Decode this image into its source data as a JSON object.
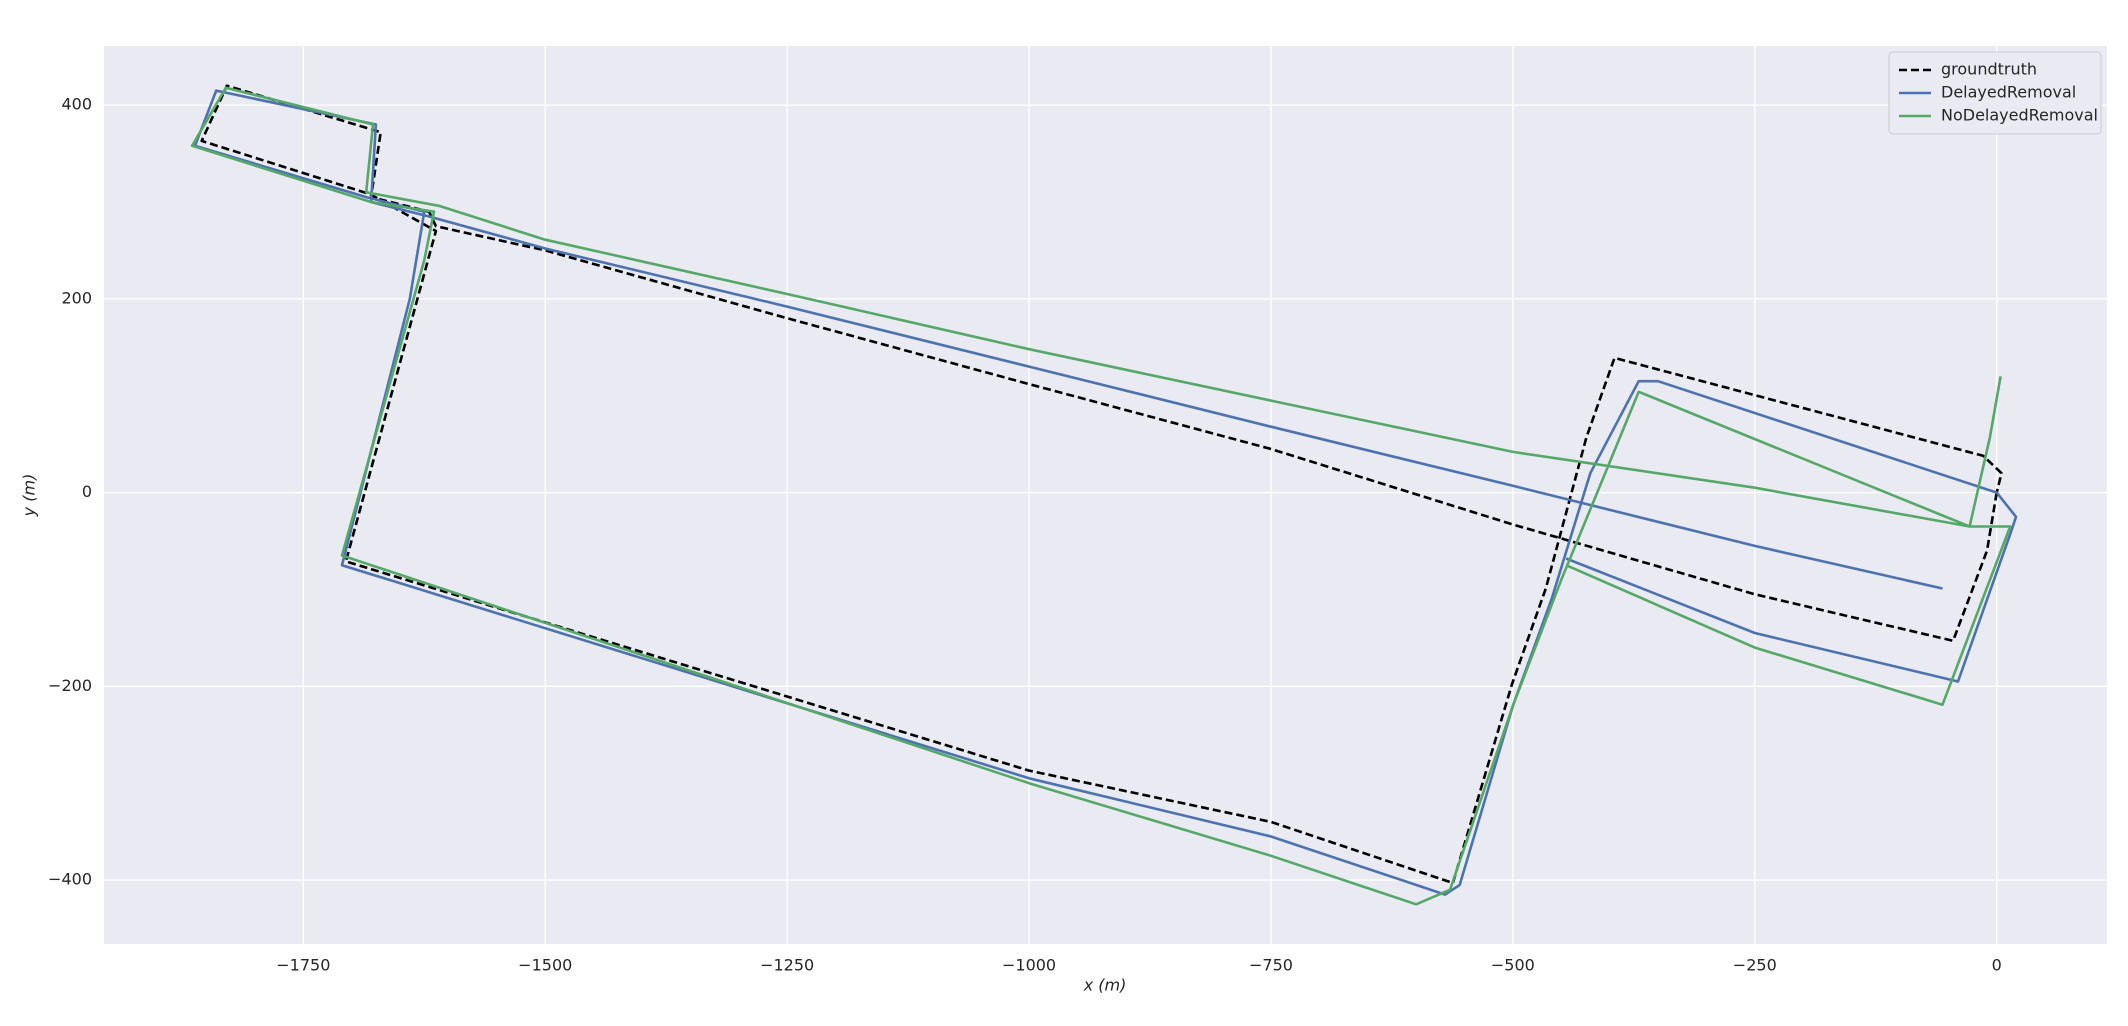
{
  "chart_data": {
    "type": "line",
    "xlabel": "x (m)",
    "ylabel": "y (m)",
    "xlim": [
      -1956,
      114
    ],
    "ylim": [
      -466,
      461
    ],
    "xticks": [
      {
        "value": -1750,
        "label": "−1750"
      },
      {
        "value": -1500,
        "label": "−1500"
      },
      {
        "value": -1250,
        "label": "−1250"
      },
      {
        "value": -1000,
        "label": "−1000"
      },
      {
        "value": -750,
        "label": "−750"
      },
      {
        "value": -500,
        "label": "−500"
      },
      {
        "value": -250,
        "label": "−250"
      },
      0
    ],
    "yticks": [
      {
        "value": -400,
        "label": "−400"
      },
      {
        "value": -200,
        "label": "−200"
      },
      0,
      200,
      400
    ],
    "grid": true,
    "legend": "upper right",
    "series": [
      {
        "name": "groundtruth",
        "color": "#000000",
        "linestyle": "dashed",
        "x": [
          0,
          -10,
          -45,
          -250,
          -500,
          -750,
          -1000,
          -1250,
          -1500,
          -1613,
          -1620,
          -1680,
          -1670,
          -1829,
          -1855,
          -1681,
          -1613,
          -1706,
          -1000,
          -750,
          -562,
          -501,
          -466,
          -424,
          -395,
          -14,
          5,
          0
        ],
        "values": [
          0,
          -60,
          -153,
          -105,
          -33,
          45,
          112,
          180,
          250,
          275,
          290,
          305,
          372,
          420,
          363,
          308,
          270,
          -71,
          -287,
          -340,
          -403,
          -198,
          -99,
          57,
          139,
          38,
          20,
          0
        ]
      },
      {
        "name": "DelayedRemoval",
        "color": "#4c72b0",
        "linestyle": "solid",
        "x": [
          -56,
          -250,
          -500,
          -750,
          -1000,
          -1250,
          -1500,
          -1620,
          -1680,
          -1675,
          -1840,
          -1862,
          -1685,
          -1625,
          -1640,
          -1710,
          -1000,
          -750,
          -570,
          -555,
          -500,
          -460,
          -420,
          -370,
          -350,
          0,
          20,
          15,
          -40,
          -250,
          -445
        ],
        "values": [
          -99,
          -55,
          7,
          68,
          130,
          192,
          252,
          285,
          300,
          380,
          415,
          358,
          305,
          290,
          200,
          -75,
          -295,
          -355,
          -415,
          -405,
          -220,
          -110,
          20,
          115,
          115,
          0,
          -25,
          -40,
          -195,
          -145,
          -68
        ]
      },
      {
        "name": "NoDelayedRemoval",
        "color": "#55a868",
        "linestyle": "solid",
        "x": [
          4,
          -7,
          -28,
          -250,
          -500,
          -750,
          -1000,
          -1250,
          -1500,
          -1610,
          -1685,
          -1678,
          -1830,
          -1865,
          -1680,
          -1615,
          -1625,
          -1710,
          -1000,
          -750,
          -600,
          -565,
          -500,
          -450,
          -370,
          -28,
          14,
          -56,
          -250,
          -445
        ],
        "values": [
          120,
          57,
          -35,
          5,
          42,
          95,
          148,
          205,
          261,
          296,
          310,
          380,
          418,
          358,
          300,
          290,
          240,
          -65,
          -300,
          -375,
          -425,
          -410,
          -220,
          -90,
          104,
          -35,
          -35,
          -219,
          -160,
          -75
        ]
      }
    ]
  }
}
